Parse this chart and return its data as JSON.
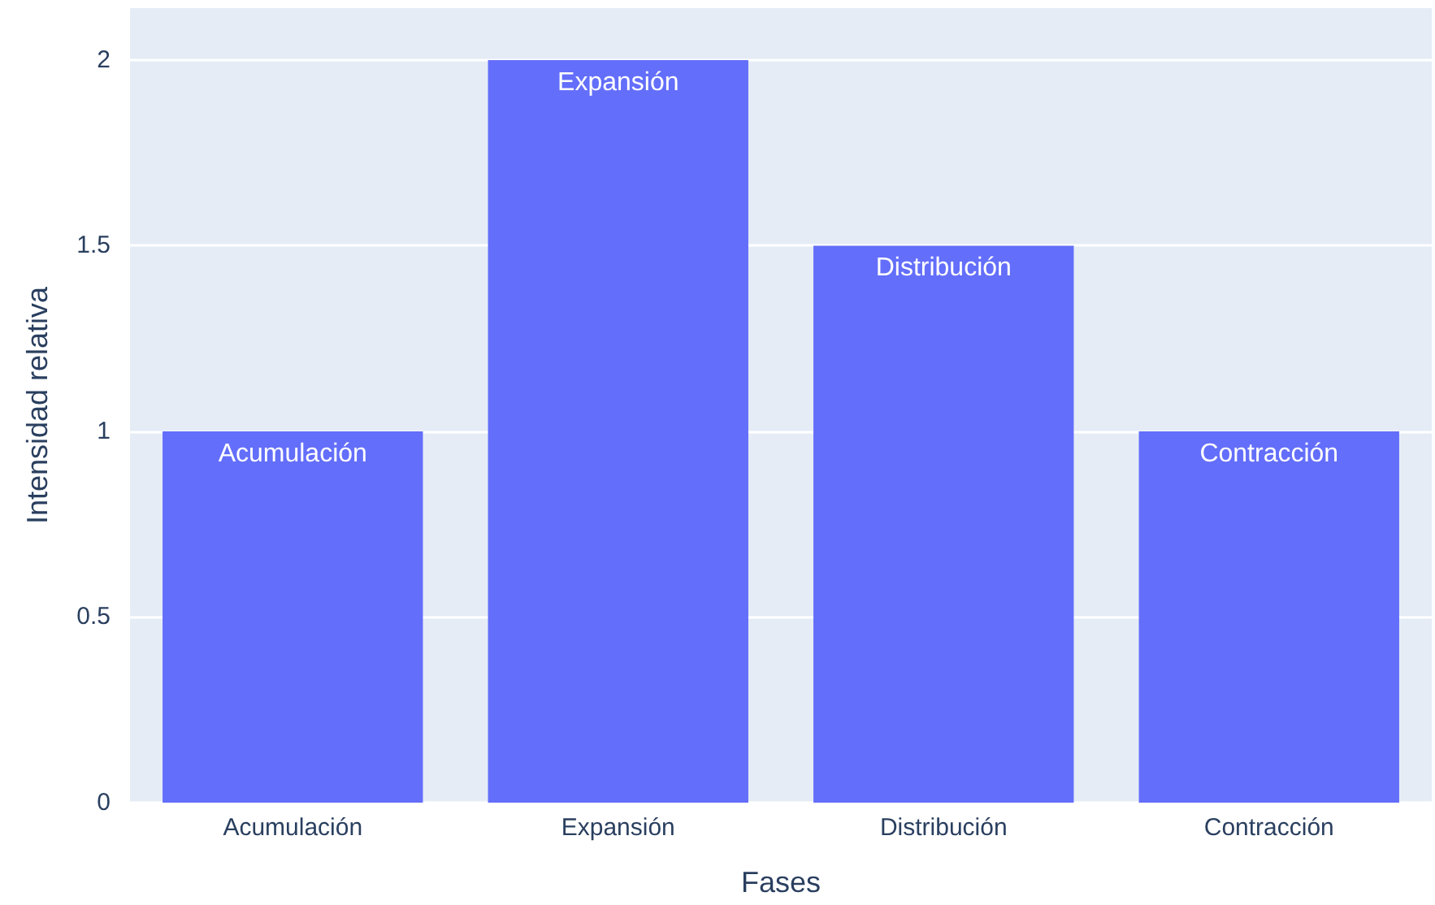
{
  "chart_data": {
    "type": "bar",
    "xlabel": "Fases",
    "ylabel": "Intensidad relativa",
    "categories": [
      "Acumulación",
      "Expansión",
      "Distribución",
      "Contracción"
    ],
    "values": [
      1,
      2,
      1.5,
      1
    ],
    "value_labels": [
      "Acumulación",
      "Expansión",
      "Distribución",
      "Contracción"
    ],
    "color": "#636efa",
    "ylim": [
      0,
      2.14
    ],
    "yticks": [
      0,
      0.5,
      1,
      1.5,
      2
    ],
    "grid": "y"
  }
}
